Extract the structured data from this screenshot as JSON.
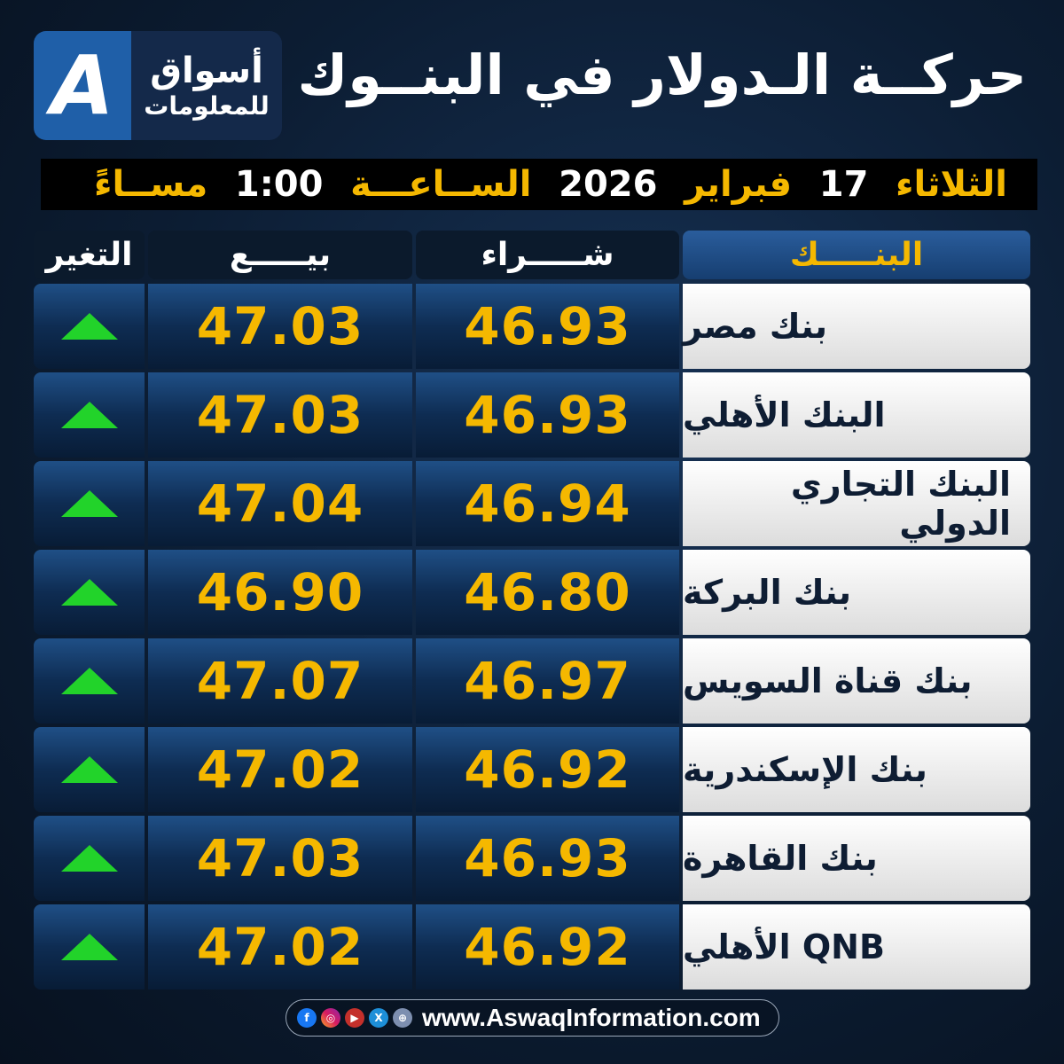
{
  "logo": {
    "mark": "A",
    "line1": "أسواق",
    "line2": "للمعلومات"
  },
  "title": "حركــة الـدولار في البنــوك",
  "datebar": {
    "day": "الثلاثاء",
    "date": "17",
    "month": "فبراير",
    "year": "2026",
    "time_label": "الســاعـــة",
    "time": "1:00",
    "period": "مســاءً"
  },
  "headers": {
    "bank": "البنـــــك",
    "buy": "شـــــراء",
    "sell": "بيـــــع",
    "change": "التغير"
  },
  "colors": {
    "accent": "#f5b800",
    "up": "#22d32a",
    "header_blue": "#1f5fa8"
  },
  "rows": [
    {
      "bank": "بنك مصر",
      "buy": "46.93",
      "sell": "47.03",
      "change": "up"
    },
    {
      "bank": "البنك الأهلي",
      "buy": "46.93",
      "sell": "47.03",
      "change": "up"
    },
    {
      "bank": "البنك التجاري الدولي",
      "buy": "46.94",
      "sell": "47.04",
      "change": "up"
    },
    {
      "bank": "بنك البركة",
      "buy": "46.80",
      "sell": "46.90",
      "change": "up"
    },
    {
      "bank": "بنك قناة السويس",
      "buy": "46.97",
      "sell": "47.07",
      "change": "up"
    },
    {
      "bank": "بنك الإسكندرية",
      "buy": "46.92",
      "sell": "47.02",
      "change": "up"
    },
    {
      "bank": "بنك القاهرة",
      "buy": "46.93",
      "sell": "47.03",
      "change": "up"
    },
    {
      "bank": "QNB الأهلي",
      "buy": "46.92",
      "sell": "47.02",
      "change": "up"
    }
  ],
  "footer": {
    "url": "www.AswaqInformation.com",
    "icons": [
      "facebook-icon",
      "instagram-icon",
      "youtube-icon",
      "x-icon",
      "globe-icon"
    ]
  }
}
